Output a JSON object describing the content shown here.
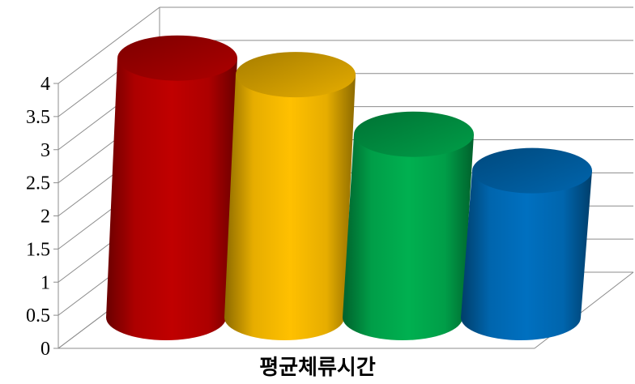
{
  "chart_data": {
    "type": "bar",
    "style": "3d-cylinder",
    "categories": [
      "",
      "",
      "",
      ""
    ],
    "values": [
      3.9,
      3.65,
      2.75,
      2.2
    ],
    "colors": [
      "#c00000",
      "#ffc000",
      "#00b050",
      "#0070c0"
    ],
    "title": "",
    "xlabel": "평균체류시간",
    "ylabel": "",
    "ylim": [
      0,
      4
    ],
    "yticks": [
      "0",
      "0.5",
      "1",
      "1.5",
      "2",
      "2.5",
      "3",
      "3.5",
      "4"
    ],
    "grid": true,
    "legend": "none"
  }
}
